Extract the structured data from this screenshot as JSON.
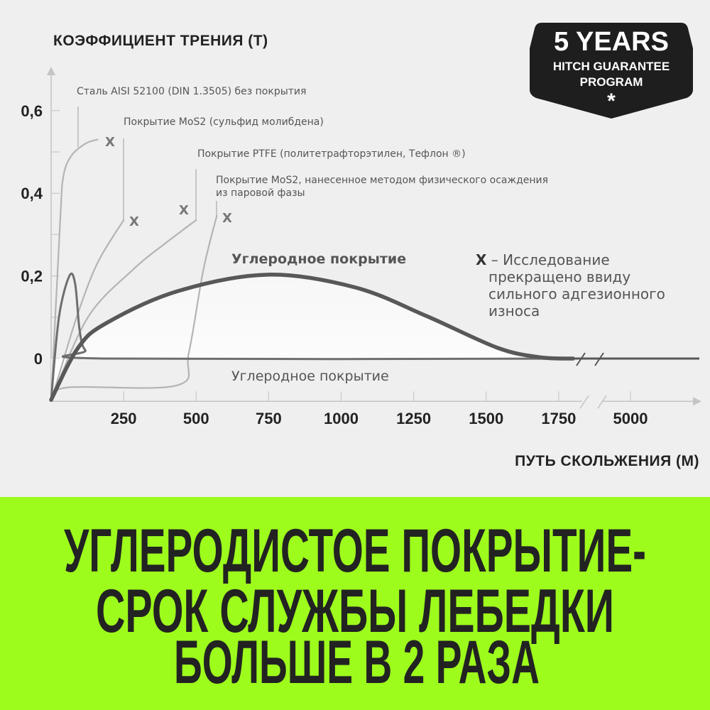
{
  "chart_data": {
    "type": "line",
    "title": "КОЭФФИЦИЕНТ ТРЕНИЯ (Т)",
    "xlabel": "ПУТЬ СКОЛЬЖЕНИЯ (М)",
    "ylabel": "КОЭФФИЦИЕНТ ТРЕНИЯ (Т)",
    "x_ticks": [
      "250",
      "500",
      "750",
      "1000",
      "1250",
      "1500",
      "1750",
      "5000"
    ],
    "x_tick_values": [
      250,
      500,
      750,
      1000,
      1250,
      1500,
      1750,
      5000
    ],
    "y_ticks": [
      "0",
      "0,2",
      "0,4",
      "0,6"
    ],
    "y_tick_values": [
      0,
      0.2,
      0.4,
      0.6
    ],
    "ylim": [
      -0.1,
      0.7
    ],
    "xlim": [
      0,
      5000
    ],
    "x_axis_break": [
      1800,
      4800
    ],
    "grid": false,
    "series": [
      {
        "name": "Сталь AISI 52100 (DIN 1.3505) без покрытия",
        "color": "#b4b4b4",
        "x": [
          0,
          31,
          42,
          69,
          118,
          160
        ],
        "y": [
          -0.1,
          0.33,
          0.44,
          0.49,
          0.52,
          0.53
        ],
        "terminated": true
      },
      {
        "name": "Покрытие MoS2 (сульфид молибдена)",
        "color": "#b4b4b4",
        "x": [
          0,
          27,
          88,
          159,
          250
        ],
        "y": [
          -0.1,
          -0.04,
          0.1,
          0.23,
          0.335
        ],
        "terminated": true
      },
      {
        "name": "Покрытие PTFE (политетрафторэтилен, Тефлон ®)",
        "color": "#b4b4b4",
        "x": [
          0,
          127,
          282,
          392,
          500
        ],
        "y": [
          -0.1,
          0.1,
          0.215,
          0.278,
          0.335
        ],
        "terminated": true
      },
      {
        "name": "Покрытие MoS2, нанесенное методом физического осаждения из паровой фазы",
        "color": "#b4b4b4",
        "x": [
          0,
          56,
          434,
          475,
          525,
          571
        ],
        "y": [
          -0.1,
          -0.07,
          -0.065,
          0.015,
          0.215,
          0.345
        ],
        "terminated": true
      },
      {
        "name": "Углеродное покрытие",
        "color": "#6e6e6e",
        "label_position": "below",
        "x": [
          0,
          27,
          63,
          83,
          98,
          118,
          179,
          1800
        ],
        "y": [
          -0.1,
          0.1,
          0.2,
          0.18,
          0.07,
          0.02,
          0,
          0
        ],
        "terminated": false
      },
      {
        "name": "Углеродное покрытие",
        "color": "#585858",
        "label_position": "above",
        "emphasis": true,
        "x": [
          0,
          93,
          191,
          436,
          748,
          1049,
          1294,
          1539,
          1686,
          1800,
          4800,
          5000,
          5200
        ],
        "y": [
          -0.1,
          0.026,
          0.086,
          0.163,
          0.203,
          0.172,
          0.103,
          0.026,
          0.003,
          0,
          0,
          0,
          0
        ],
        "terminated": false
      }
    ],
    "marker_note": "X – Исследование прекращено ввиду сильного адгезионного износа",
    "marker_note_lines": [
      "X – Исследование",
      "прекращено ввиду",
      "сильного адгезионного",
      "износа"
    ],
    "marker_symbol": "X"
  },
  "legend_labels": {
    "steel": "Сталь AISI 52100 (DIN 1.3505) без покрытия",
    "mos2": "Покрытие MoS2 (сульфид молибдена)",
    "ptfe": "Покрытие PTFE (политетрафторэтилен, Тефлон ®)",
    "pvd_line1": "Покрытие MoS2, нанесенное методом физического осаждения",
    "pvd_line2": "из паровой фазы",
    "carbon_top": "Углеродное покрытие",
    "carbon_bottom": "Углеродное покрытие"
  },
  "badge": {
    "line1": "5 YEARS",
    "line2": "HITCH GUARANTEE",
    "line3": "PROGRAM",
    "star": "*"
  },
  "headline": {
    "line1": "УГЛЕРОДИСТОЕ ПОКРЫТИЕ-",
    "line2": "СРОК СЛУЖБЫ ЛЕБЕДКИ",
    "line3": "БОЛЬШЕ В 2 РАЗА"
  },
  "colors": {
    "background": "#efefef",
    "band": "#9dfc1c",
    "headline_text": "#222222",
    "badge": "#1e1e1e"
  }
}
